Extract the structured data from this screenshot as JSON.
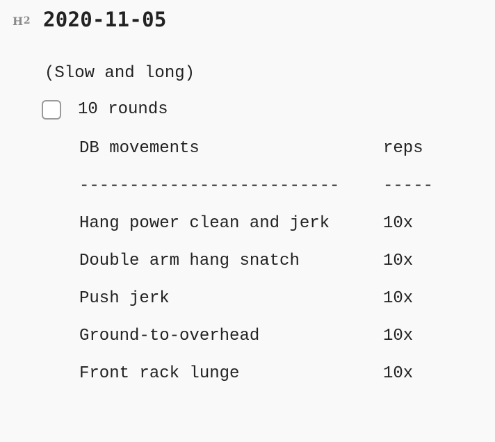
{
  "document": {
    "heading": {
      "marker_letter": "H",
      "marker_level": "2",
      "text": "2020-11-05"
    },
    "note": "(Slow and long)",
    "task": {
      "checked": false,
      "label": "10 rounds"
    },
    "table": {
      "header": {
        "movement": "DB movements",
        "reps": "reps"
      },
      "separator": {
        "movement": "--------------------------",
        "reps": "-----"
      },
      "rows": [
        {
          "movement": "Hang power clean and jerk",
          "reps": "10x"
        },
        {
          "movement": "Double arm hang snatch",
          "reps": "10x"
        },
        {
          "movement": "Push jerk",
          "reps": "10x"
        },
        {
          "movement": "Ground-to-overhead",
          "reps": "10x"
        },
        {
          "movement": "Front rack lunge",
          "reps": "10x"
        }
      ]
    }
  }
}
